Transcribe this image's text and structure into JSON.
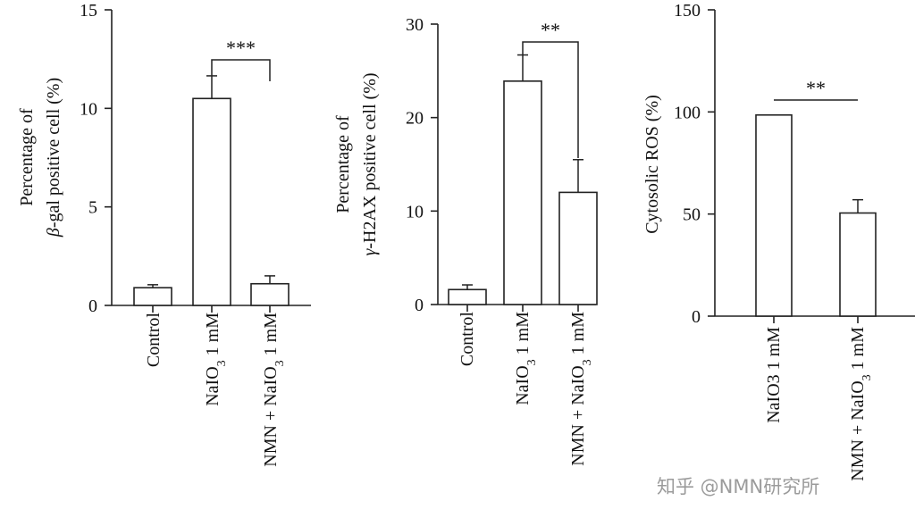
{
  "chart_data": [
    {
      "type": "bar",
      "ylabel_line1": "Percentage of",
      "ylabel_line2_symbol": "β",
      "ylabel_line2_rest": "-gal positive cell (%)",
      "ylim": [
        0,
        15
      ],
      "yticks": [
        0,
        5,
        10,
        15
      ],
      "categories": [
        {
          "parts": [
            {
              "t": "Control"
            }
          ]
        },
        {
          "parts": [
            {
              "t": "NaIO"
            },
            {
              "t": "3",
              "sub": true
            },
            {
              "t": " 1 mM"
            }
          ]
        },
        {
          "parts": [
            {
              "t": "NMN + NaIO"
            },
            {
              "t": "3",
              "sub": true
            },
            {
              "t": " 1 mM"
            }
          ]
        }
      ],
      "values": [
        0.9,
        10.5,
        1.1
      ],
      "errors": [
        0.15,
        1.15,
        0.4
      ],
      "significance": {
        "from": 1,
        "to": 2,
        "label": "***",
        "style": "bracket"
      }
    },
    {
      "type": "bar",
      "ylabel_line1": "Percentage of",
      "ylabel_line2_symbol": "γ",
      "ylabel_line2_rest": "-H2AX positive cell (%)",
      "ylim": [
        0,
        30
      ],
      "yticks": [
        0,
        10,
        20,
        30
      ],
      "categories": [
        {
          "parts": [
            {
              "t": "Control"
            }
          ]
        },
        {
          "parts": [
            {
              "t": "NaIO"
            },
            {
              "t": "3",
              "sub": true
            },
            {
              "t": " 1 mM"
            }
          ]
        },
        {
          "parts": [
            {
              "t": "NMN + NaIO"
            },
            {
              "t": "3",
              "sub": true
            },
            {
              "t": " 1 mM"
            }
          ]
        }
      ],
      "values": [
        1.6,
        23.9,
        12.0
      ],
      "errors": [
        0.5,
        2.8,
        3.5
      ],
      "significance": {
        "from": 1,
        "to": 2,
        "label": "**",
        "style": "bracket"
      }
    },
    {
      "type": "bar",
      "ylabel_line1": "",
      "ylabel_line2_symbol": "",
      "ylabel_line2_rest": "Cytosolic ROS (%)",
      "ylim": [
        0,
        150
      ],
      "yticks": [
        0,
        50,
        100,
        150
      ],
      "categories": [
        {
          "parts": [
            {
              "t": "NaIO3 1 mM"
            }
          ]
        },
        {
          "parts": [
            {
              "t": "NMN + NaIO"
            },
            {
              "t": "3",
              "sub": true
            },
            {
              "t": " 1 mM"
            }
          ]
        }
      ],
      "values": [
        98.5,
        50.5
      ],
      "errors": [
        0,
        6.5
      ],
      "significance": {
        "from": 0,
        "to": 1,
        "label": "**",
        "style": "line"
      }
    }
  ],
  "watermark": "知乎 @NMN研究所"
}
